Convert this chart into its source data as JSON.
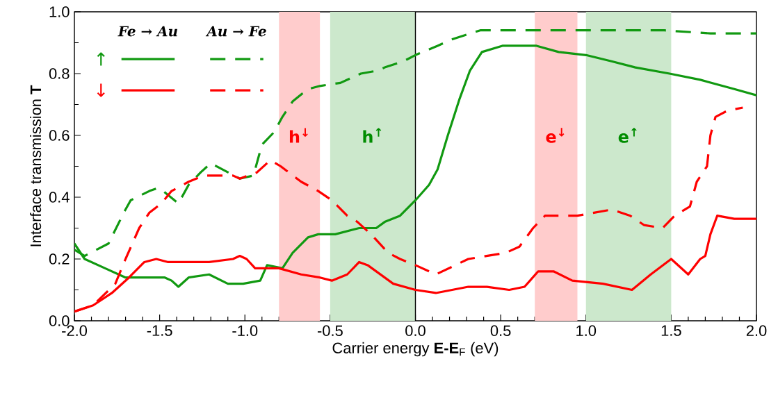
{
  "chart_data": {
    "type": "line",
    "xlabel": "Carrier energy **E-E**$_{F}$ (eV)",
    "ylabel": "Interface transmission **T**",
    "xlim": [
      -2.0,
      2.0
    ],
    "ylim": [
      0.0,
      1.0
    ],
    "xticks": [
      {
        "value": -2.0,
        "label": "-2.0"
      },
      {
        "value": -1.5,
        "label": "-1.5"
      },
      {
        "value": -1.0,
        "label": "-1.0"
      },
      {
        "value": -0.5,
        "label": "-0.5"
      },
      {
        "value": 0.0,
        "label": "0.0"
      },
      {
        "value": 0.5,
        "label": "0.5"
      },
      {
        "value": 1.0,
        "label": "1.0"
      },
      {
        "value": 1.5,
        "label": "1.5"
      },
      {
        "value": 2.0,
        "label": "2.0"
      }
    ],
    "yticks": [
      {
        "value": 0.0,
        "label": "0.0"
      },
      {
        "value": 0.2,
        "label": "0.2"
      },
      {
        "value": 0.4,
        "label": "0.4"
      },
      {
        "value": 0.6,
        "label": "0.6"
      },
      {
        "value": 0.8,
        "label": "0.8"
      },
      {
        "value": 1.0,
        "label": "1.0"
      }
    ],
    "grid": false,
    "annotations": [
      "*Fe* → *Au*",
      "*Au* → *Fe*",
      "↑",
      "↓"
    ],
    "bands": [
      {
        "axis": "x",
        "from": -0.8,
        "to": -0.56,
        "label": "h$^{↓}$",
        "color": "#ffcccc"
      },
      {
        "axis": "x",
        "from": -0.5,
        "to": 0.0,
        "label": "h$^{↑}$",
        "color": "#cce8cc"
      },
      {
        "axis": "x",
        "from": 0.7,
        "to": 0.95,
        "label": "e$^{↓}$",
        "color": "#ffcccc"
      },
      {
        "axis": "x",
        "from": 1.0,
        "to": 1.5,
        "label": "e$^{↑}$",
        "color": "#cce8cc"
      }
    ],
    "ref_lines": [
      {
        "axis": "x",
        "value": 0.0,
        "color": "#000000"
      }
    ],
    "series": [
      {
        "color": "#119911",
        "line_style": "solid",
        "x": [
          -2.0,
          -1.94,
          -1.82,
          -1.7,
          -1.64,
          -1.55,
          -1.47,
          -1.43,
          -1.39,
          -1.33,
          -1.21,
          -1.1,
          -1.01,
          -0.91,
          -0.87,
          -0.78,
          -0.72,
          -0.63,
          -0.57,
          -0.47,
          -0.33,
          -0.23,
          -0.18,
          -0.09,
          0.0,
          0.08,
          0.13,
          0.19,
          0.26,
          0.32,
          0.39,
          0.51,
          0.71,
          0.84,
          1.0,
          1.15,
          1.29,
          1.49,
          1.67,
          1.87,
          2.0
        ],
        "values": [
          0.25,
          0.2,
          0.17,
          0.14,
          0.14,
          0.14,
          0.14,
          0.13,
          0.11,
          0.14,
          0.15,
          0.12,
          0.12,
          0.13,
          0.18,
          0.17,
          0.22,
          0.27,
          0.28,
          0.28,
          0.3,
          0.3,
          0.32,
          0.34,
          0.39,
          0.44,
          0.49,
          0.6,
          0.72,
          0.81,
          0.87,
          0.89,
          0.89,
          0.87,
          0.86,
          0.84,
          0.82,
          0.8,
          0.78,
          0.75,
          0.73
        ]
      },
      {
        "color": "#119911",
        "line_style": "dashed",
        "x": [
          -2.0,
          -1.94,
          -1.8,
          -1.71,
          -1.67,
          -1.56,
          -1.51,
          -1.48,
          -1.39,
          -1.33,
          -1.26,
          -1.2,
          -1.03,
          -0.95,
          -0.9,
          -0.83,
          -0.78,
          -0.72,
          -0.63,
          -0.56,
          -0.44,
          -0.32,
          -0.22,
          -0.18,
          -0.07,
          0.0,
          0.13,
          0.21,
          0.38,
          0.54,
          0.78,
          1.03,
          1.25,
          1.46,
          1.73,
          2.0
        ],
        "values": [
          0.23,
          0.21,
          0.25,
          0.35,
          0.39,
          0.42,
          0.43,
          0.42,
          0.38,
          0.44,
          0.48,
          0.51,
          0.46,
          0.47,
          0.57,
          0.61,
          0.66,
          0.71,
          0.75,
          0.76,
          0.77,
          0.8,
          0.81,
          0.82,
          0.84,
          0.86,
          0.89,
          0.91,
          0.94,
          0.94,
          0.94,
          0.94,
          0.94,
          0.94,
          0.93,
          0.93
        ]
      },
      {
        "color": "#ff0000",
        "line_style": "solid",
        "x": [
          -2.0,
          -1.89,
          -1.78,
          -1.68,
          -1.59,
          -1.52,
          -1.45,
          -1.37,
          -1.21,
          -1.07,
          -1.03,
          -0.99,
          -0.94,
          -0.8,
          -0.67,
          -0.56,
          -0.49,
          -0.4,
          -0.33,
          -0.28,
          -0.13,
          0.0,
          0.12,
          0.31,
          0.42,
          0.55,
          0.64,
          0.72,
          0.81,
          0.92,
          1.1,
          1.27,
          1.38,
          1.5,
          1.6,
          1.67,
          1.7,
          1.73,
          1.77,
          1.87,
          2.0
        ],
        "values": [
          0.03,
          0.05,
          0.09,
          0.14,
          0.19,
          0.2,
          0.19,
          0.19,
          0.19,
          0.2,
          0.21,
          0.2,
          0.17,
          0.17,
          0.15,
          0.14,
          0.13,
          0.15,
          0.19,
          0.18,
          0.12,
          0.1,
          0.09,
          0.11,
          0.11,
          0.1,
          0.11,
          0.16,
          0.16,
          0.13,
          0.12,
          0.1,
          0.15,
          0.2,
          0.15,
          0.2,
          0.21,
          0.28,
          0.34,
          0.33,
          0.33
        ]
      },
      {
        "color": "#ff0000",
        "line_style": "dashed",
        "x": [
          -2.0,
          -1.89,
          -1.76,
          -1.7,
          -1.62,
          -1.56,
          -1.49,
          -1.43,
          -1.33,
          -1.24,
          -1.07,
          -1.03,
          -0.93,
          -0.85,
          -0.79,
          -0.67,
          -0.57,
          -0.49,
          -0.4,
          -0.34,
          -0.26,
          -0.16,
          -0.09,
          0.0,
          0.12,
          0.31,
          0.53,
          0.61,
          0.69,
          0.76,
          0.95,
          1.15,
          1.26,
          1.34,
          1.45,
          1.52,
          1.61,
          1.65,
          1.71,
          1.73,
          1.76,
          1.83,
          1.92
        ],
        "values": [
          0.03,
          0.05,
          0.12,
          0.2,
          0.3,
          0.35,
          0.38,
          0.42,
          0.45,
          0.47,
          0.47,
          0.46,
          0.48,
          0.52,
          0.5,
          0.45,
          0.42,
          0.39,
          0.34,
          0.32,
          0.28,
          0.22,
          0.2,
          0.18,
          0.15,
          0.2,
          0.22,
          0.24,
          0.3,
          0.34,
          0.34,
          0.36,
          0.34,
          0.31,
          0.3,
          0.34,
          0.37,
          0.45,
          0.5,
          0.6,
          0.66,
          0.68,
          0.69
        ]
      }
    ]
  }
}
